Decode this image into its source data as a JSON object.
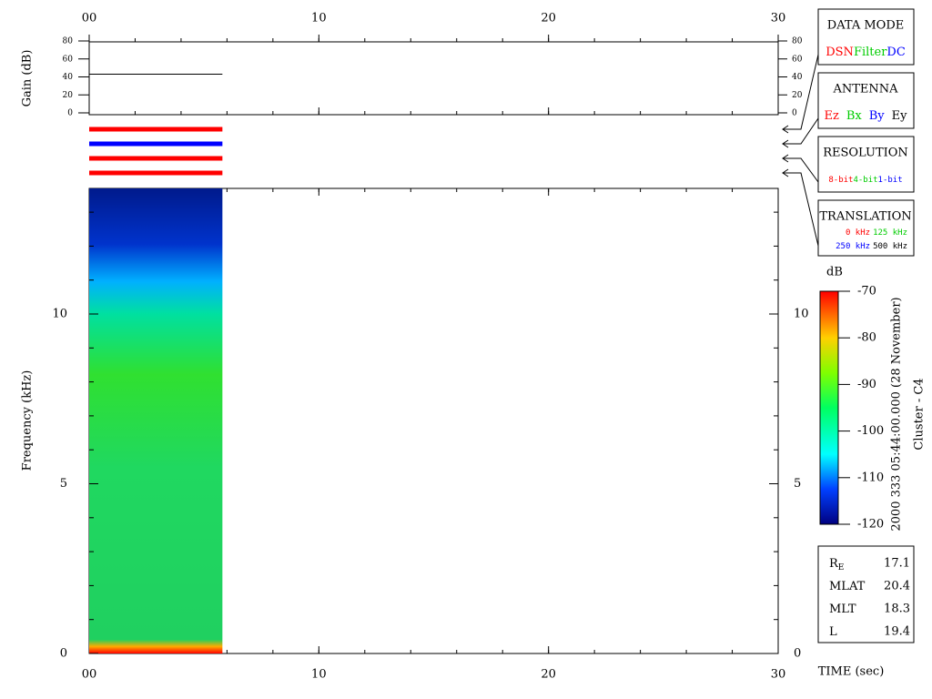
{
  "time_axis": {
    "label": "TIME (sec)",
    "xlim": [
      0,
      30
    ],
    "xticks": [
      {
        "value": 0,
        "label": "00"
      },
      10,
      20,
      30
    ],
    "minor_step": 2
  },
  "gain_panel": {
    "label": "Gain (dB)",
    "ylim": [
      0,
      80
    ],
    "yticks": [
      0,
      20,
      40,
      60,
      80
    ],
    "x": [
      0,
      5.8
    ],
    "values": [
      43,
      43
    ]
  },
  "indicator_colors": [
    "#ff0000",
    "#0000ff",
    "#ff0000",
    "#ff0000"
  ],
  "spectrogram": {
    "label": "Frequency (kHz)",
    "ylim": [
      0,
      13.7
    ],
    "yticks": [
      0,
      5,
      10
    ],
    "minor_step": 1,
    "data_x": [
      0,
      5.8
    ]
  },
  "colorbar": {
    "label": "dB",
    "ylim": [
      -120,
      -70
    ],
    "yticks": [
      -70,
      -80,
      -90,
      -100,
      -110,
      -120
    ]
  },
  "side_title": [
    "2000 333 05:44:00.000 (28 November)",
    "Cluster - C4"
  ],
  "boxes": [
    {
      "title": "DATA MODE",
      "items": [
        {
          "text": "DSN",
          "color": "#ff0000"
        },
        {
          "text": "Filter",
          "color": "#00cc00"
        },
        {
          "text": "DC",
          "color": "#0000ff"
        }
      ]
    },
    {
      "title": "ANTENNA",
      "items": [
        {
          "text": "Ez",
          "color": "#ff0000"
        },
        {
          "text": "Bx",
          "color": "#00cc00"
        },
        {
          "text": "By",
          "color": "#0000ff"
        },
        {
          "text": "Ey",
          "color": "#000000"
        }
      ]
    },
    {
      "title": "RESOLUTION",
      "items": [
        {
          "text": "8-bit",
          "color": "#ff0000"
        },
        {
          "text": "4-bit",
          "color": "#00cc00"
        },
        {
          "text": "1-bit",
          "color": "#0000ff"
        }
      ]
    },
    {
      "title": "TRANSLATION",
      "items": [
        {
          "text": "0 kHz",
          "color": "#ff0000"
        },
        {
          "text": "125 kHz",
          "color": "#00cc00"
        },
        {
          "text": "250 kHz",
          "color": "#0000ff"
        },
        {
          "text": "500 kHz",
          "color": "#000000"
        }
      ]
    }
  ],
  "ephemeris": [
    {
      "label": "R",
      "sub": "E",
      "value": "17.1"
    },
    {
      "label": "MLAT",
      "value": "20.4"
    },
    {
      "label": "MLT",
      "value": "18.3"
    },
    {
      "label": "L",
      "value": "19.4"
    }
  ]
}
